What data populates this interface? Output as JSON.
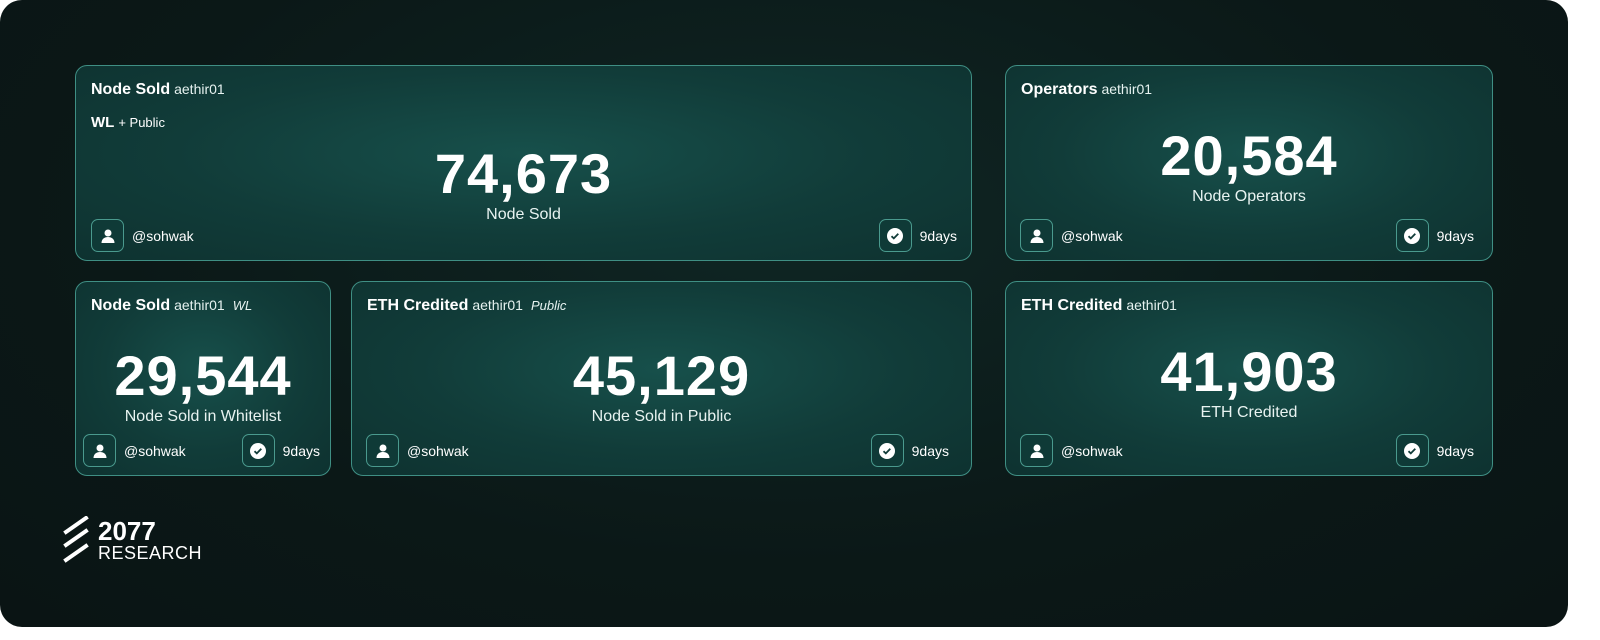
{
  "cards": [
    {
      "title": "Node Sold",
      "project": "aethir01",
      "subtitle_bold": "WL",
      "subtitle_rest": "+ Public",
      "value": "74,673",
      "label": "Node Sold",
      "user": "@sohwak",
      "time": "9days"
    },
    {
      "title": "Operators",
      "project": "aethir01",
      "value": "20,584",
      "label": "Node Operators",
      "user": "@sohwak",
      "time": "9days"
    },
    {
      "title": "Node Sold",
      "project": "aethir01",
      "tag": "WL",
      "value": "29,544",
      "label": "Node Sold in Whitelist",
      "user": "@sohwak",
      "time": "9days"
    },
    {
      "title": "ETH Credited",
      "project": "aethir01",
      "tag": "Public",
      "value": "45,129",
      "label": "Node Sold in Public",
      "user": "@sohwak",
      "time": "9days"
    },
    {
      "title": "ETH Credited",
      "project": "aethir01",
      "value": "41,903",
      "label": "ETH Credited",
      "user": "@sohwak",
      "time": "9days"
    }
  ],
  "brand": {
    "name": "2077",
    "sub": "RESEARCH"
  },
  "colors": {
    "accent": "#3f8f84",
    "background": "#0b1817"
  }
}
